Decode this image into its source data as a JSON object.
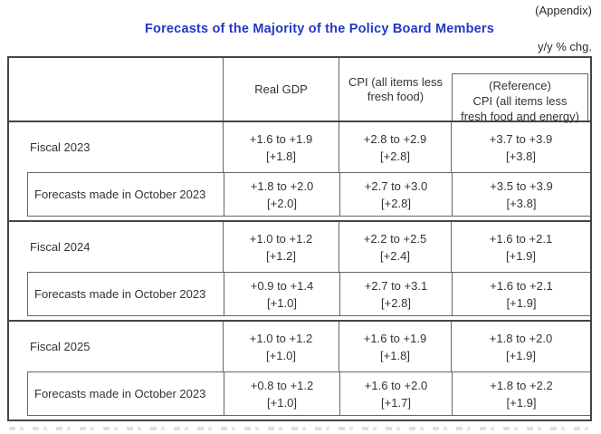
{
  "page": {
    "appendix_tag": "(Appendix)",
    "title": "Forecasts of the Majority of the Policy Board Members",
    "unit_label": "y/y % chg.",
    "title_color": "#2338c4"
  },
  "table": {
    "header": {
      "row_label": "",
      "real_gdp": "Real GDP",
      "cpi": [
        "CPI (all items less",
        "fresh food)"
      ],
      "reference": [
        "(Reference)",
        "CPI (all items less",
        "fresh food and energy)"
      ]
    },
    "rows": [
      {
        "label": "Fiscal 2023",
        "indent": false,
        "real_gdp_range": "+1.6 to +1.9",
        "real_gdp_median": "[+1.8]",
        "cpi_range": "+2.8 to +2.9",
        "cpi_median": "[+2.8]",
        "reference_range": "+3.7 to +3.9",
        "reference_median": "[+3.8]"
      },
      {
        "label": "Forecasts made in October 2023",
        "indent": true,
        "real_gdp_range": "+1.8 to +2.0",
        "real_gdp_median": "[+2.0]",
        "cpi_range": "+2.7 to +3.0",
        "cpi_median": "[+2.8]",
        "reference_range": "+3.5 to +3.9",
        "reference_median": "[+3.8]"
      },
      {
        "label": "Fiscal 2024",
        "indent": false,
        "real_gdp_range": "+1.0 to +1.2",
        "real_gdp_median": "[+1.2]",
        "cpi_range": "+2.2 to +2.5",
        "cpi_median": "[+2.4]",
        "reference_range": "+1.6 to +2.1",
        "reference_median": "[+1.9]"
      },
      {
        "label": "Forecasts made in October 2023",
        "indent": true,
        "real_gdp_range": "+0.9 to +1.4",
        "real_gdp_median": "[+1.0]",
        "cpi_range": "+2.7 to +3.1",
        "cpi_median": "[+2.8]",
        "reference_range": "+1.6 to +2.1",
        "reference_median": "[+1.9]"
      },
      {
        "label": "Fiscal 2025",
        "indent": false,
        "real_gdp_range": "+1.0 to +1.2",
        "real_gdp_median": "[+1.0]",
        "cpi_range": "+1.6 to +1.9",
        "cpi_median": "[+1.8]",
        "reference_range": "+1.8 to +2.0",
        "reference_median": "[+1.9]"
      },
      {
        "label": "Forecasts made in October 2023",
        "indent": true,
        "real_gdp_range": "+0.8 to +1.2",
        "real_gdp_median": "[+1.0]",
        "cpi_range": "+1.6 to +2.0",
        "cpi_median": "[+1.7]",
        "reference_range": "+1.8 to +2.2",
        "reference_median": "[+1.9]"
      }
    ]
  }
}
